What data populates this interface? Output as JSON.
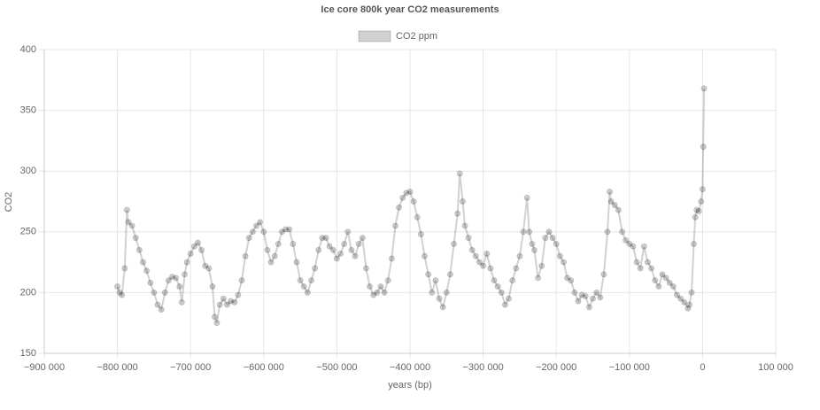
{
  "chart_data": {
    "type": "line",
    "title": "Ice core 800k year CO2 measurements",
    "x_label": "years (bp)",
    "y_label": "CO2",
    "grid": true,
    "legend": "top",
    "xlim": [
      -900000,
      100000
    ],
    "xticks": [
      {
        "value": -900000,
        "label": "−900 000"
      },
      {
        "value": -800000,
        "label": "−800 000"
      },
      {
        "value": -700000,
        "label": "−700 000"
      },
      {
        "value": -600000,
        "label": "−600 000"
      },
      {
        "value": -500000,
        "label": "−500 000"
      },
      {
        "value": -400000,
        "label": "−400 000"
      },
      {
        "value": -300000,
        "label": "−300 000"
      },
      {
        "value": -200000,
        "label": "−200 000"
      },
      {
        "value": -100000,
        "label": "−100 000"
      },
      0,
      {
        "value": 100000,
        "label": "100 000"
      }
    ],
    "ylim": [
      150,
      400
    ],
    "yticks": [
      150,
      200,
      250,
      300,
      350,
      400
    ],
    "x": [
      -800000,
      -797000,
      -794000,
      -790000,
      -787000,
      -785000,
      -780000,
      -775000,
      -770000,
      -765000,
      -760000,
      -755000,
      -750000,
      -745000,
      -740000,
      -735000,
      -730000,
      -725000,
      -720000,
      -715000,
      -712000,
      -708000,
      -705000,
      -700000,
      -695000,
      -690000,
      -685000,
      -680000,
      -675000,
      -670000,
      -667000,
      -664000,
      -660000,
      -655000,
      -650000,
      -645000,
      -640000,
      -635000,
      -630000,
      -625000,
      -620000,
      -615000,
      -610000,
      -605000,
      -600000,
      -595000,
      -590000,
      -585000,
      -580000,
      -575000,
      -570000,
      -565000,
      -560000,
      -555000,
      -550000,
      -545000,
      -540000,
      -535000,
      -530000,
      -525000,
      -520000,
      -515000,
      -510000,
      -505000,
      -500000,
      -495000,
      -490000,
      -485000,
      -480000,
      -475000,
      -470000,
      -465000,
      -460000,
      -455000,
      -450000,
      -445000,
      -440000,
      -435000,
      -430000,
      -425000,
      -420000,
      -415000,
      -410000,
      -405000,
      -400000,
      -395000,
      -390000,
      -385000,
      -380000,
      -375000,
      -370000,
      -365000,
      -360000,
      -355000,
      -350000,
      -345000,
      -340000,
      -335000,
      -332000,
      -328000,
      -325000,
      -320000,
      -315000,
      -310000,
      -305000,
      -300000,
      -295000,
      -290000,
      -285000,
      -280000,
      -275000,
      -270000,
      -265000,
      -260000,
      -255000,
      -250000,
      -245000,
      -240000,
      -237000,
      -233000,
      -230000,
      -225000,
      -220000,
      -215000,
      -210000,
      -205000,
      -200000,
      -195000,
      -190000,
      -185000,
      -180000,
      -175000,
      -170000,
      -165000,
      -160000,
      -155000,
      -150000,
      -145000,
      -140000,
      -135000,
      -130000,
      -127000,
      -125000,
      -120000,
      -115000,
      -110000,
      -105000,
      -100000,
      -95000,
      -90000,
      -85000,
      -80000,
      -75000,
      -70000,
      -65000,
      -60000,
      -55000,
      -50000,
      -45000,
      -40000,
      -35000,
      -30000,
      -25000,
      -20000,
      -18000,
      -15000,
      -12000,
      -10000,
      -8000,
      -5000,
      -2000,
      0,
      1000,
      2000
    ],
    "series": [
      {
        "name": "CO2 ppm",
        "color": "rgba(0,0,0,0.18)",
        "values": [
          205,
          200,
          198,
          220,
          268,
          258,
          255,
          245,
          235,
          225,
          218,
          208,
          200,
          190,
          186,
          200,
          210,
          213,
          212,
          205,
          192,
          215,
          225,
          232,
          238,
          241,
          235,
          222,
          220,
          205,
          180,
          175,
          190,
          195,
          190,
          193,
          192,
          198,
          210,
          230,
          245,
          250,
          255,
          258,
          250,
          235,
          225,
          230,
          240,
          250,
          252,
          252,
          240,
          225,
          210,
          205,
          200,
          210,
          220,
          235,
          245,
          245,
          238,
          235,
          228,
          232,
          240,
          250,
          235,
          230,
          240,
          245,
          220,
          205,
          198,
          200,
          205,
          200,
          210,
          228,
          255,
          270,
          278,
          282,
          283,
          275,
          262,
          248,
          230,
          215,
          200,
          210,
          195,
          188,
          200,
          215,
          240,
          265,
          298,
          275,
          255,
          245,
          235,
          230,
          225,
          222,
          232,
          220,
          210,
          205,
          200,
          190,
          195,
          210,
          220,
          230,
          250,
          278,
          250,
          240,
          235,
          212,
          222,
          245,
          250,
          245,
          240,
          230,
          225,
          212,
          210,
          200,
          193,
          198,
          197,
          188,
          195,
          200,
          196,
          215,
          250,
          283,
          275,
          272,
          268,
          250,
          243,
          240,
          238,
          225,
          220,
          238,
          225,
          220,
          210,
          205,
          215,
          212,
          208,
          205,
          198,
          195,
          192,
          187,
          190,
          200,
          240,
          262,
          268,
          267,
          275,
          285,
          320,
          368
        ]
      }
    ]
  }
}
